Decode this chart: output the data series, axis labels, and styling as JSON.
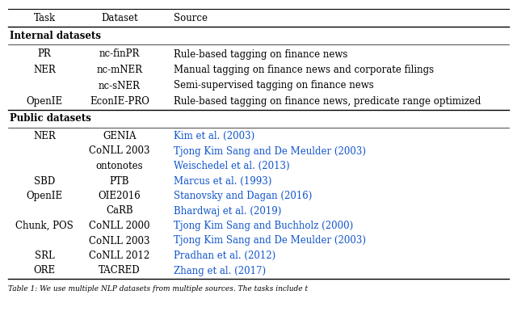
{
  "title_row": [
    "Task",
    "Dataset",
    "Source"
  ],
  "section1_header": "Internal datasets",
  "section1_rows": [
    [
      "PR",
      "nc-finPR",
      "Rule-based tagging on finance news",
      false
    ],
    [
      "NER",
      "nc-mNER",
      "Manual tagging on finance news and corporate filings",
      false
    ],
    [
      "",
      "nc-sNER",
      "Semi-supervised tagging on finance news",
      false
    ],
    [
      "OpenIE",
      "EconIE-PRO",
      "Rule-based tagging on finance news, predicate range optimized",
      false
    ]
  ],
  "section2_header": "Public datasets",
  "section2_rows": [
    [
      "NER",
      "GENIA",
      "Kim et al. (2003)",
      true
    ],
    [
      "",
      "CoNLL 2003",
      "Tjong Kim Sang and De Meulder (2003)",
      true
    ],
    [
      "",
      "ontonotes",
      "Weischedel et al. (2013)",
      true
    ],
    [
      "SBD",
      "PTB",
      "Marcus et al. (1993)",
      true
    ],
    [
      "OpenIE",
      "OIE2016",
      "Stanovsky and Dagan (2016)",
      true
    ],
    [
      "",
      "CaRB",
      "Bhardwaj et al. (2019)",
      true
    ],
    [
      "Chunk, POS",
      "CoNLL 2000",
      "Tjong Kim Sang and Buchholz (2000)",
      true
    ],
    [
      "",
      "CoNLL 2003",
      "Tjong Kim Sang and De Meulder (2003)",
      true
    ],
    [
      "SRL",
      "CoNLL 2012",
      "Pradhan et al. (2012)",
      true
    ],
    [
      "ORE",
      "TACRED",
      "Zhang et al. (2017)",
      true
    ]
  ],
  "link_color": "#1155CC",
  "text_color": "#000000",
  "bg_color": "#ffffff",
  "font_size": 8.5,
  "caption": "Table 1: We use multiple NLP datasets from multiple sources. The tasks include t"
}
